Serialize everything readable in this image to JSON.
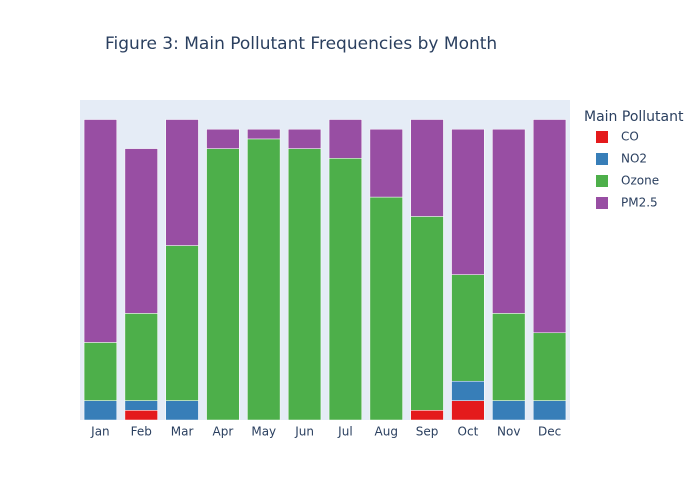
{
  "chart_data": {
    "type": "stacked_bar",
    "title": "Figure 3: Main Pollutant Frequencies by Month",
    "legend_title": "Main Pollutant",
    "categories": [
      "Jan",
      "Feb",
      "Mar",
      "Apr",
      "May",
      "Jun",
      "Jul",
      "Aug",
      "Sep",
      "Oct",
      "Nov",
      "Dec"
    ],
    "series": [
      {
        "name": "CO",
        "color": "#e41a1c",
        "values": [
          0,
          1,
          0,
          0,
          0,
          0,
          0,
          0,
          1,
          2,
          0,
          0
        ]
      },
      {
        "name": "NO2",
        "color": "#377eb8",
        "values": [
          2,
          1,
          2,
          0,
          0,
          0,
          0,
          0,
          0,
          2,
          2,
          2
        ]
      },
      {
        "name": "Ozone",
        "color": "#4daf4a",
        "values": [
          6,
          9,
          16,
          28,
          29,
          28,
          27,
          23,
          20,
          11,
          9,
          7
        ]
      },
      {
        "name": "PM2.5",
        "color": "#984ea3",
        "values": [
          23,
          17,
          13,
          2,
          1,
          2,
          4,
          7,
          10,
          15,
          19,
          22
        ]
      }
    ]
  }
}
